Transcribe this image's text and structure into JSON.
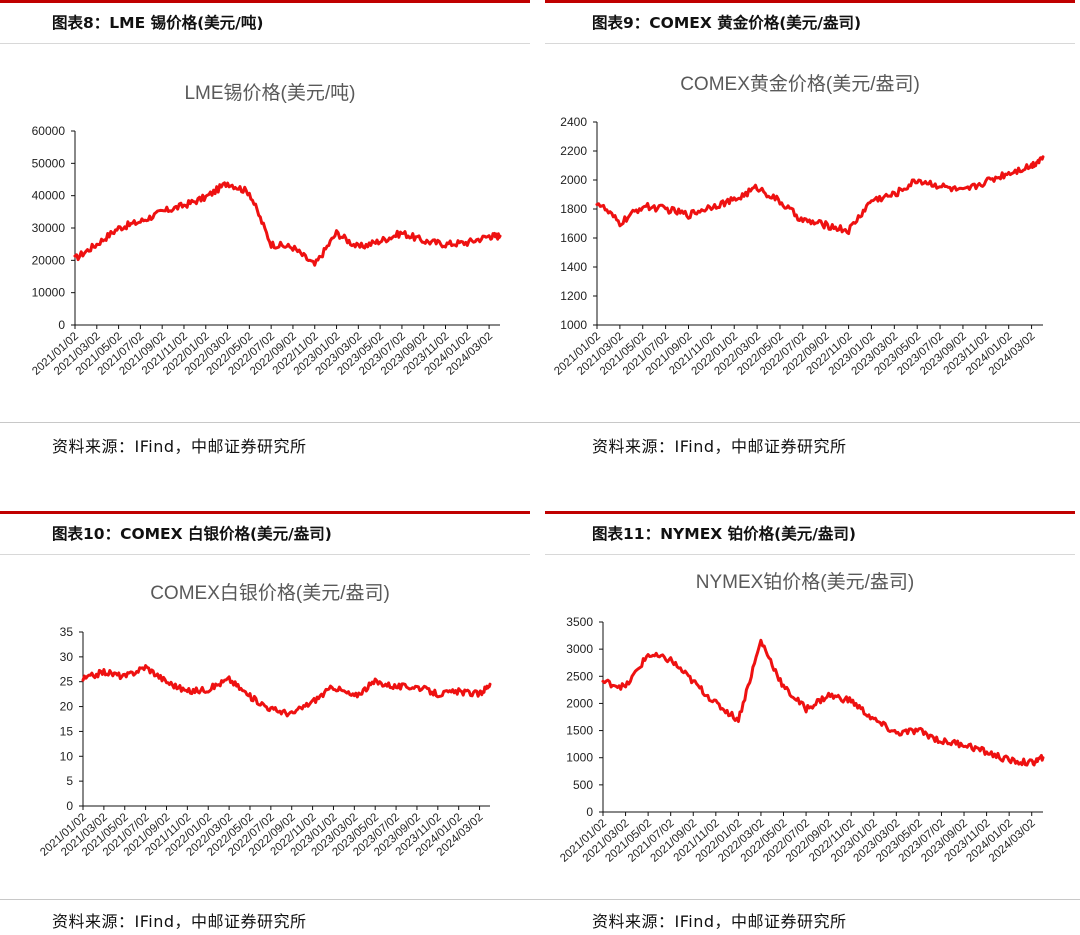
{
  "panels": [
    {
      "caption": "图表8：LME 锡价格(美元/吨)",
      "source": "资料来源：IFind，中邮证券研究所",
      "chart_data": {
        "type": "line",
        "title": "LME锡价格(美元/吨)",
        "color": "#ee1111",
        "ylim": [
          0,
          60000
        ],
        "yticks": [
          "0",
          "10000",
          "20000",
          "30000",
          "40000",
          "50000",
          "60000"
        ],
        "xticks": [
          "2021/01/02",
          "2021/03/02",
          "2021/05/02",
          "2021/07/02",
          "2021/09/02",
          "2021/11/02",
          "2022/01/02",
          "2022/03/02",
          "2022/05/02",
          "2022/07/02",
          "2022/09/02",
          "2022/11/02",
          "2023/01/02",
          "2023/03/02",
          "2023/05/02",
          "2023/07/02",
          "2023/09/02",
          "2023/11/02",
          "2024/01/02",
          "2024/03/02"
        ],
        "x": [
          0,
          1,
          2,
          3,
          4,
          5,
          6,
          7,
          8,
          9,
          10,
          11,
          12,
          13,
          14,
          15,
          16,
          17,
          18,
          19,
          19.5
        ],
        "values": [
          20500,
          25000,
          30000,
          32000,
          35000,
          37000,
          39500,
          44000,
          41000,
          25000,
          24000,
          18500,
          28500,
          24000,
          26000,
          28500,
          26000,
          25000,
          25500,
          27500,
          27500
        ]
      }
    },
    {
      "caption": "图表9：COMEX 黄金价格(美元/盎司)",
      "source": "资料来源：IFind，中邮证券研究所",
      "chart_data": {
        "type": "line",
        "title": "COMEX黄金价格(美元/盎司)",
        "color": "#ee1111",
        "ylim": [
          1000,
          2400
        ],
        "yticks": [
          "1000",
          "1200",
          "1400",
          "1600",
          "1800",
          "2000",
          "2200",
          "2400"
        ],
        "xticks": [
          "2021/01/02",
          "2021/03/02",
          "2021/05/02",
          "2021/07/02",
          "2021/09/02",
          "2021/11/02",
          "2022/01/02",
          "2022/03/02",
          "2022/05/02",
          "2022/07/02",
          "2022/09/02",
          "2022/11/02",
          "2023/01/02",
          "2023/03/02",
          "2023/05/02",
          "2023/07/02",
          "2023/09/02",
          "2023/11/02",
          "2024/01/02",
          "2024/03/02"
        ],
        "x": [
          0,
          1,
          2,
          3,
          4,
          5,
          6,
          7,
          8,
          9,
          10,
          11,
          12,
          13,
          14,
          15,
          16,
          17,
          18,
          19,
          19.5
        ],
        "values": [
          1850,
          1700,
          1820,
          1800,
          1760,
          1820,
          1860,
          1950,
          1850,
          1720,
          1690,
          1650,
          1860,
          1900,
          2000,
          1960,
          1920,
          1990,
          2050,
          2100,
          2160
        ]
      }
    },
    {
      "caption": "图表10：COMEX 白银价格(美元/盎司)",
      "source": "资料来源：IFind，中邮证券研究所",
      "chart_data": {
        "type": "line",
        "title": "COMEX白银价格(美元/盎司)",
        "color": "#ee1111",
        "ylim": [
          0,
          35
        ],
        "yticks": [
          "0",
          "5",
          "10",
          "15",
          "20",
          "25",
          "30",
          "35"
        ],
        "xticks": [
          "2021/01/02",
          "2021/03/02",
          "2021/05/02",
          "2021/07/02",
          "2021/09/02",
          "2021/11/02",
          "2022/01/02",
          "2022/03/02",
          "2022/05/02",
          "2022/07/02",
          "2022/09/02",
          "2022/11/02",
          "2023/01/02",
          "2023/03/02",
          "2023/05/02",
          "2023/07/02",
          "2023/09/02",
          "2023/11/02",
          "2024/01/02",
          "2024/03/02"
        ],
        "x": [
          0,
          1,
          2,
          3,
          4,
          5,
          6,
          7,
          8,
          9,
          10,
          11,
          12,
          13,
          14,
          15,
          16,
          17,
          18,
          19,
          19.5
        ],
        "values": [
          25.5,
          27,
          26,
          28,
          25,
          23,
          23.5,
          25.5,
          22,
          19.5,
          18.5,
          21,
          24,
          22,
          25,
          24,
          24,
          22.5,
          23,
          22.5,
          24.5
        ]
      }
    },
    {
      "caption": "图表11：NYMEX 铂价格(美元/盎司)",
      "source": "资料来源：IFind，中邮证券研究所",
      "chart_data": {
        "type": "line",
        "title": "NYMEX铂价格(美元/盎司)",
        "color": "#ee1111",
        "ylim": [
          0,
          3500
        ],
        "yticks": [
          "0",
          "500",
          "1000",
          "1500",
          "2000",
          "2500",
          "3000",
          "3500"
        ],
        "xticks": [
          "2021/01/02",
          "2021/03/02",
          "2021/05/02",
          "2021/07/02",
          "2021/09/02",
          "2021/11/02",
          "2022/01/02",
          "2022/03/02",
          "2022/05/02",
          "2022/07/02",
          "2022/09/02",
          "2022/11/02",
          "2023/01/02",
          "2023/03/02",
          "2023/05/02",
          "2023/07/02",
          "2023/09/02",
          "2023/11/02",
          "2024/01/02",
          "2024/03/02"
        ],
        "x": [
          0,
          1,
          2,
          3,
          4,
          5,
          6,
          7,
          8,
          9,
          10,
          11,
          12,
          13,
          14,
          15,
          16,
          17,
          18,
          19,
          19.5
        ],
        "values": [
          2400,
          2300,
          2900,
          2800,
          2400,
          2000,
          1700,
          3150,
          2300,
          1900,
          2150,
          2050,
          1700,
          1450,
          1500,
          1300,
          1250,
          1100,
          950,
          900,
          1000
        ]
      }
    }
  ]
}
